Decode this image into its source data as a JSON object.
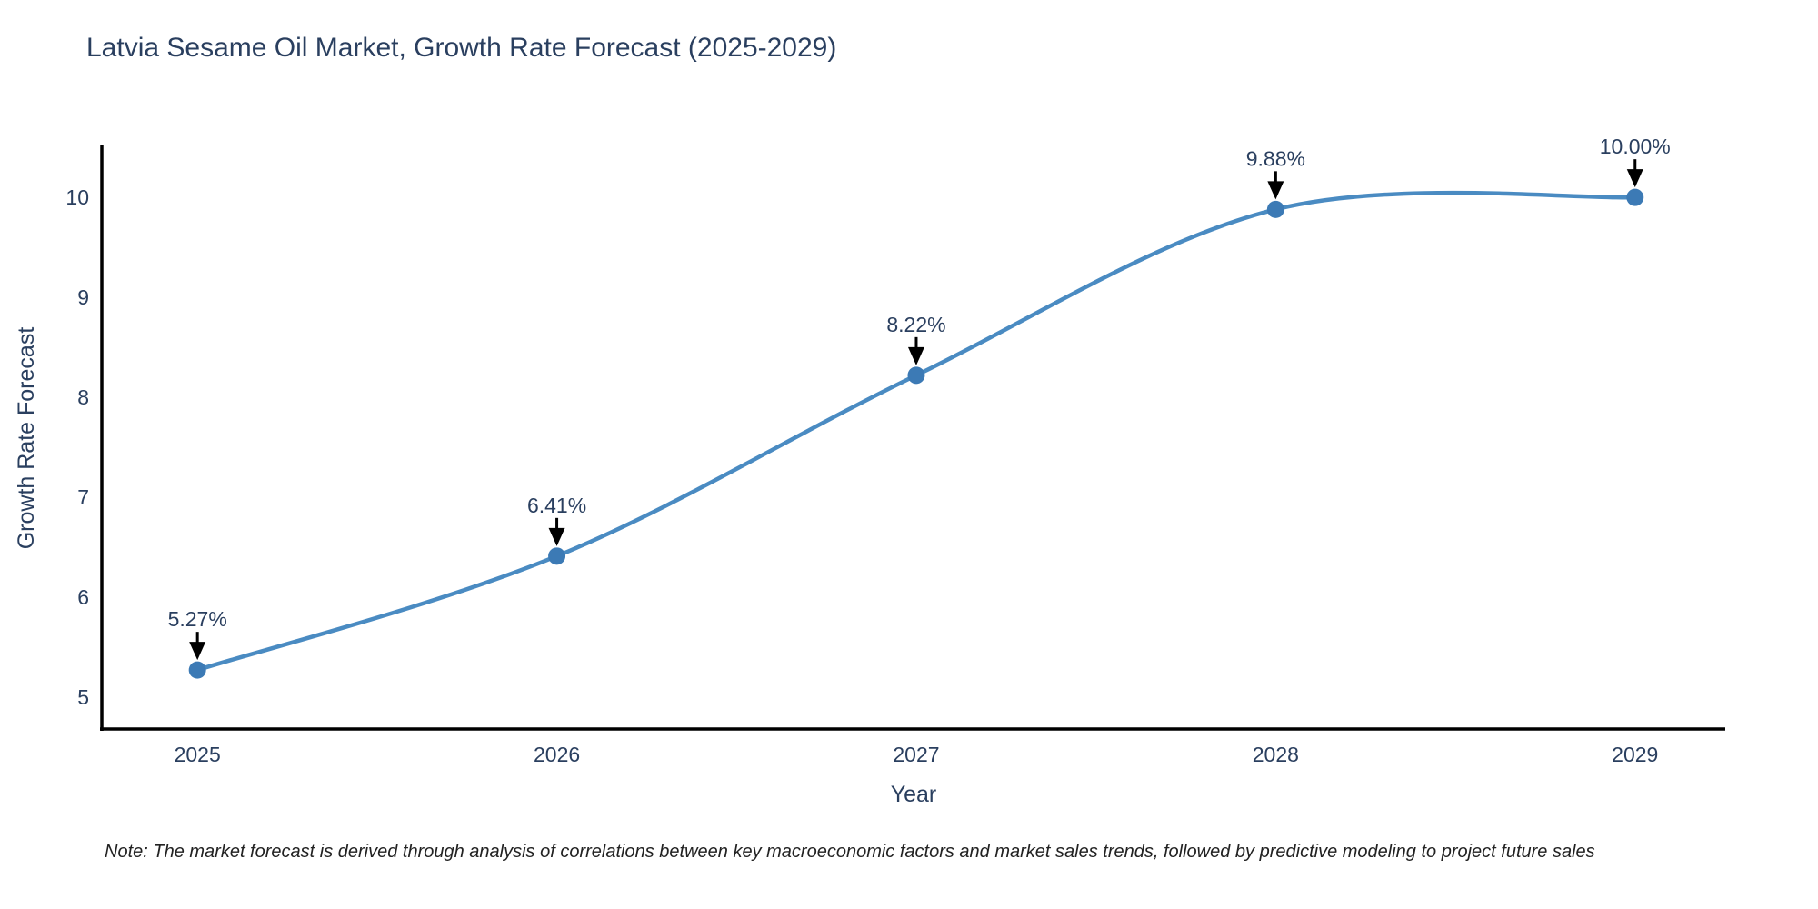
{
  "note": "Note: The market forecast is derived through analysis of correlations between key macroeconomic factors and market sales trends, followed by predictive modeling to project future sales",
  "chart_data": {
    "type": "line",
    "title": "Latvia Sesame Oil Market, Growth Rate Forecast (2025-2029)",
    "xlabel": "Year",
    "ylabel": "Growth Rate Forecast",
    "x": [
      2025,
      2026,
      2027,
      2028,
      2029
    ],
    "y": [
      5.27,
      6.41,
      8.22,
      9.88,
      10.0
    ],
    "point_labels": [
      "5.27%",
      "6.41%",
      "8.22%",
      "9.88%",
      "10.00%"
    ],
    "x_ticks": [
      "2025",
      "2026",
      "2027",
      "2028",
      "2029"
    ],
    "y_ticks": [
      5,
      6,
      7,
      8,
      9,
      10
    ],
    "xlim": [
      2024.734,
      2029.251
    ],
    "ylim": [
      4.68,
      10.52
    ],
    "line_shape": "spline",
    "grid": false,
    "legend_position": "none",
    "colors": {
      "line": "#4a8bc2",
      "marker": "#3c7ab5",
      "arrow": "#000000",
      "text": "#2a3f5f",
      "axis": "#000000"
    }
  }
}
